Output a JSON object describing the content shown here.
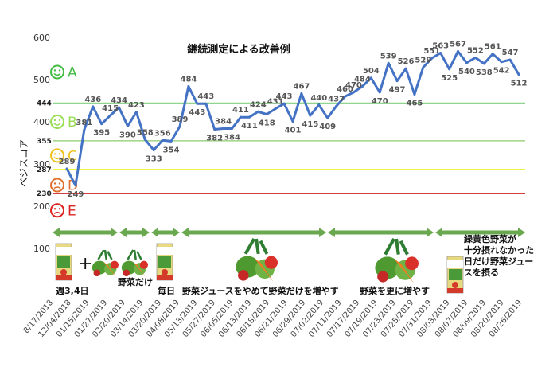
{
  "chart_data": {
    "type": "line",
    "title": "継続測定による改善例",
    "ylabel": "ベジスコア",
    "ylim": [
      0,
      600
    ],
    "yticks": [
      100,
      200,
      300,
      400,
      500,
      600
    ],
    "reference_lines": [
      {
        "value": 444,
        "label": "444",
        "color": "#22aa22"
      },
      {
        "value": 355,
        "label": "355",
        "color": "#a8d890"
      },
      {
        "value": 287,
        "label": "287",
        "color": "#eeee22"
      },
      {
        "value": 230,
        "label": "230",
        "color": "#cc2222"
      }
    ],
    "grades": [
      {
        "letter": "A",
        "color": "#44bb44",
        "face": "#44bb44",
        "y": 518
      },
      {
        "letter": "B",
        "color": "#99dd55",
        "face": "#99dd55",
        "y": 400
      },
      {
        "letter": "C",
        "color": "#f0c020",
        "face": "#f0c020",
        "y": 320
      },
      {
        "letter": "D",
        "color": "#e07030",
        "face": "#e07030",
        "y": 250
      },
      {
        "letter": "E",
        "color": "#dd2222",
        "face": "#dd2222",
        "y": 190
      }
    ],
    "values": [
      289,
      249,
      381,
      436,
      395,
      415,
      434,
      390,
      423,
      358,
      333,
      356,
      354,
      389,
      484,
      443,
      443,
      382,
      384,
      384,
      411,
      411,
      424,
      418,
      431,
      443,
      401,
      467,
      415,
      440,
      409,
      437,
      460,
      470,
      484,
      504,
      470,
      539,
      497,
      526,
      465,
      529,
      551,
      563,
      525,
      567,
      540,
      552,
      538,
      561,
      542,
      547,
      512
    ],
    "x_labels": [
      "8/17/2018",
      "12/04/2018",
      "01/15/2019",
      "01/27/2019",
      "02/20/2019",
      "03/14/2019",
      "03/20/2019",
      "04/08/2019",
      "05/13/2019",
      "05/27/2019",
      "06/05/2019",
      "06/13/2019",
      "06/18/2019",
      "06/21/2019",
      "06/29/2019",
      "07/02/2019",
      "07/11/2019",
      "07/17/2019",
      "07/19/2019",
      "07/23/2019",
      "07/25/2019",
      "07/31/2019",
      "08/03/2019",
      "08/07/2019",
      "08/09/2019",
      "08/20/2019",
      "08/26/2019"
    ],
    "series_color": "#4472c4",
    "grid": false
  },
  "phases": [
    {
      "label": "週3,4日"
    },
    {
      "label": "野菜だけ"
    },
    {
      "label": "毎日"
    },
    {
      "label": "野菜ジュースをやめて野菜だけを増やす"
    },
    {
      "label": "野菜を更に増やす"
    },
    {
      "label": "緑黄色野菜が十分摂れなかった日だけ野菜ジュースを摂る",
      "lines": [
        "緑黄色野菜が",
        "十分摂れなかった",
        "日だけ野菜ジュー",
        "スを摂る"
      ]
    }
  ],
  "icons": {
    "juice": "vegetable-juice-carton-icon",
    "vegetables": "vegetable-bundle-icon",
    "plus": "+"
  }
}
